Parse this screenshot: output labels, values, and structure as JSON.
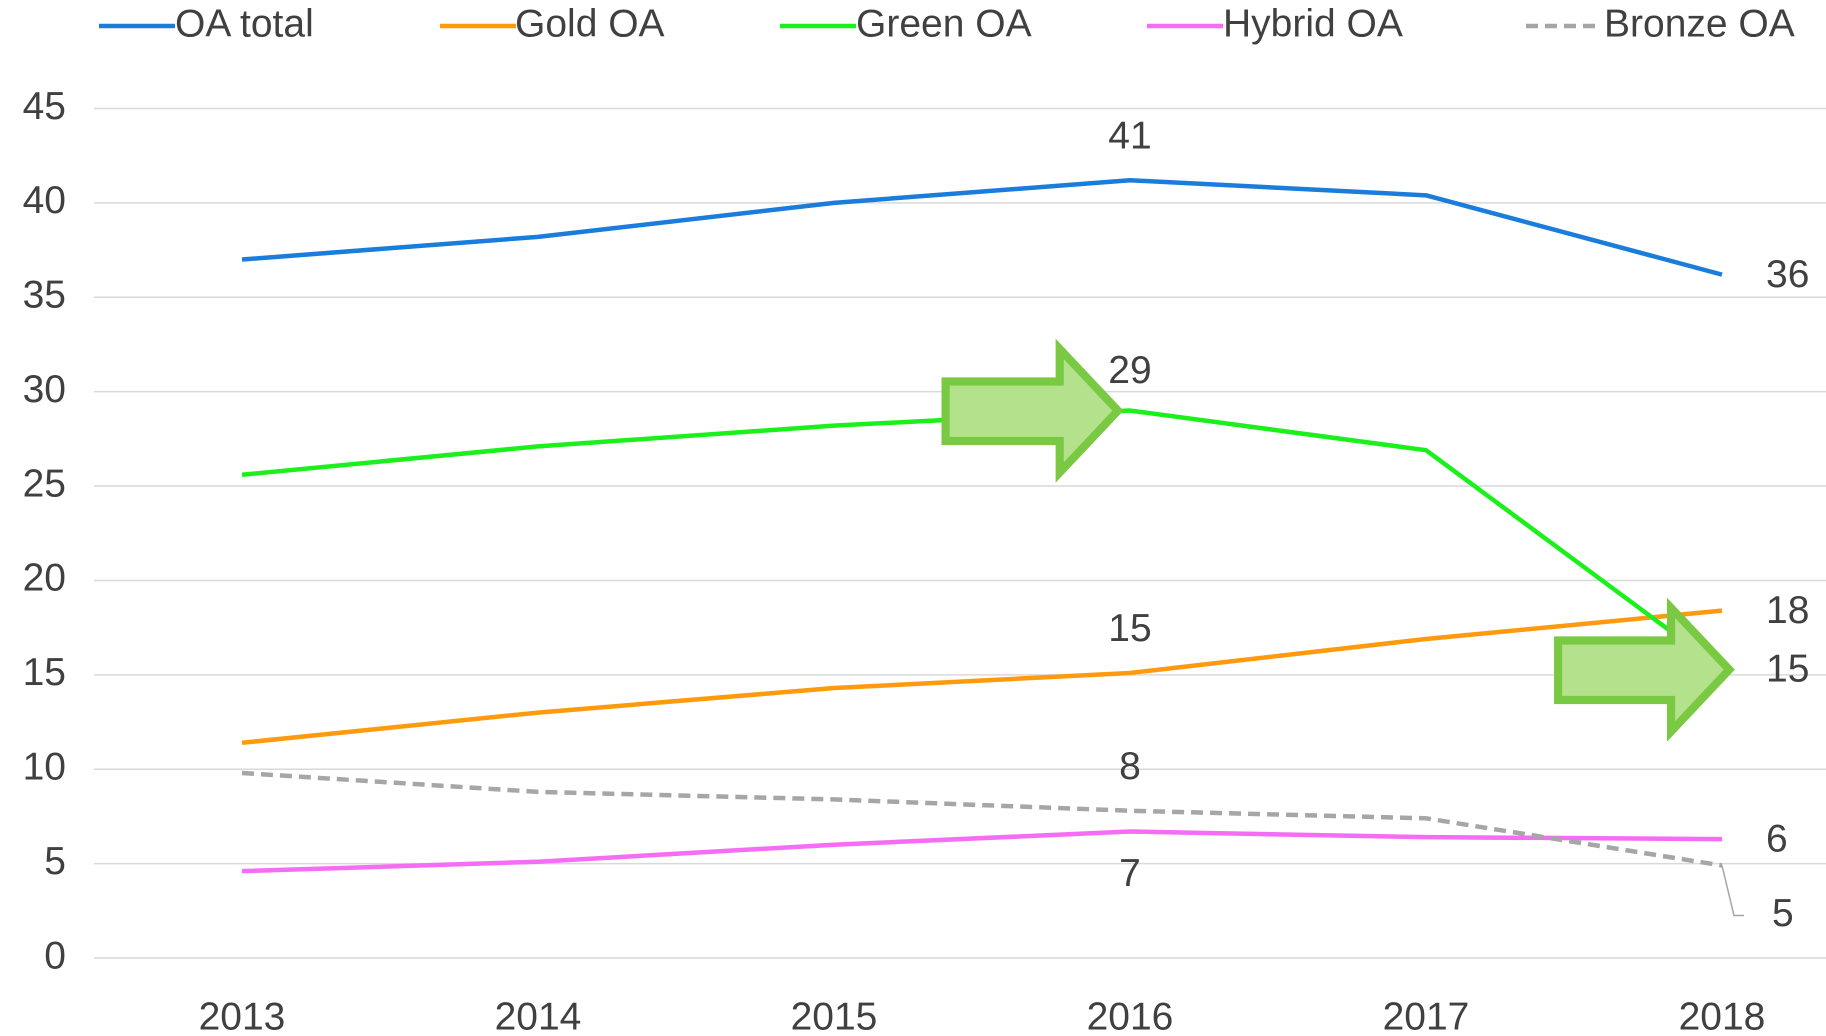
{
  "chart_data": {
    "type": "line",
    "categories": [
      "2013",
      "2014",
      "2015",
      "2016",
      "2017",
      "2018"
    ],
    "series": [
      {
        "name": "OA total",
        "color": "#1a7ddb",
        "values": [
          37.0,
          38.2,
          40.0,
          41.2,
          40.4,
          36.2
        ],
        "value_labels": [
          null,
          null,
          null,
          "41",
          null,
          "36"
        ]
      },
      {
        "name": "Gold OA",
        "color": "#ff9a0f",
        "values": [
          11.4,
          13.0,
          14.3,
          15.1,
          16.9,
          18.4
        ],
        "value_labels": [
          null,
          null,
          null,
          "15",
          null,
          "18"
        ]
      },
      {
        "name": "Green OA",
        "color": "#1cf01c",
        "values": [
          25.6,
          27.1,
          28.2,
          29.0,
          26.9,
          15.3
        ],
        "value_labels": [
          null,
          null,
          null,
          "29",
          null,
          "15"
        ]
      },
      {
        "name": "Hybrid OA",
        "color": "#f56cf5",
        "values": [
          4.6,
          5.1,
          6.0,
          6.7,
          6.4,
          6.3
        ],
        "value_labels": [
          null,
          null,
          null,
          "7",
          null,
          "6"
        ]
      },
      {
        "name": "Bronze OA",
        "color": "#a6a6a6",
        "dashed": true,
        "values": [
          9.8,
          8.8,
          8.4,
          7.8,
          7.4,
          4.9
        ],
        "value_labels": [
          null,
          null,
          null,
          "8",
          null,
          "5"
        ]
      }
    ],
    "ylim": [
      0,
      45
    ],
    "yticks": [
      0,
      5,
      10,
      15,
      20,
      25,
      30,
      35,
      40,
      45
    ],
    "grid": true,
    "legend": "top"
  }
}
